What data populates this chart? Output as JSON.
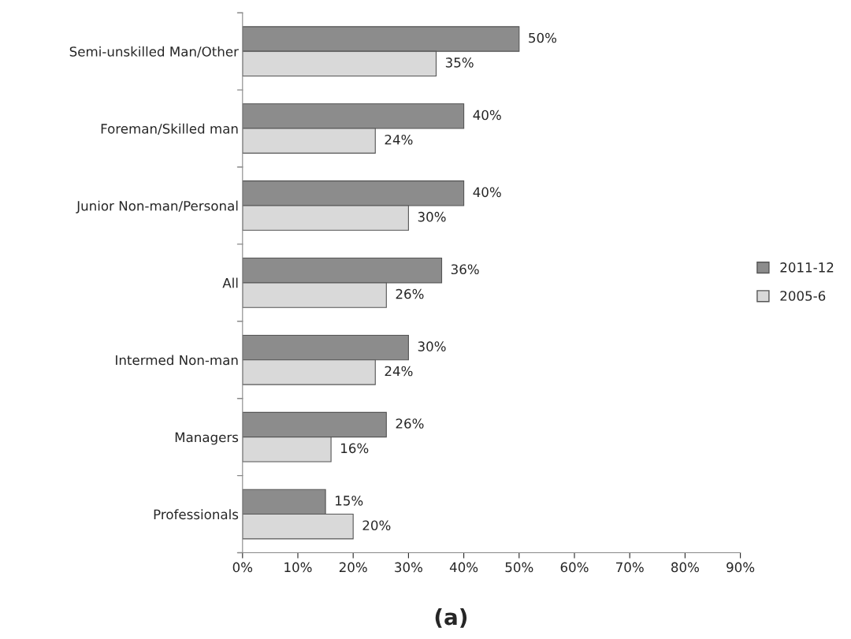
{
  "chart_data": {
    "type": "bar",
    "orientation": "horizontal",
    "categories": [
      "Semi-unskilled Man/Other",
      "Foreman/Skilled man",
      "Junior Non-man/Personal",
      "All",
      "Intermed Non-man",
      "Managers",
      "Professionals"
    ],
    "series": [
      {
        "name": "2011-12",
        "color": "#8c8c8c",
        "values": [
          50,
          40,
          40,
          36,
          30,
          26,
          15
        ],
        "value_labels": [
          "50%",
          "40%",
          "40%",
          "36%",
          "30%",
          "26%",
          "15%"
        ]
      },
      {
        "name": "2005-6",
        "color": "#d9d9d9",
        "values": [
          35,
          24,
          30,
          26,
          24,
          16,
          20
        ],
        "value_labels": [
          "35%",
          "24%",
          "30%",
          "26%",
          "24%",
          "16%",
          "20%"
        ]
      }
    ],
    "xlim": [
      0,
      90
    ],
    "xticks": [
      {
        "value": 0,
        "label": "0%"
      },
      {
        "value": 10,
        "label": "10%"
      },
      {
        "value": 20,
        "label": "20%"
      },
      {
        "value": 30,
        "label": "30%"
      },
      {
        "value": 40,
        "label": "40%"
      },
      {
        "value": 50,
        "label": "50%"
      },
      {
        "value": 60,
        "label": "60%"
      },
      {
        "value": 70,
        "label": "70%"
      },
      {
        "value": 80,
        "label": "80%"
      },
      {
        "value": 90,
        "label": "90%"
      }
    ],
    "legend": "right",
    "grid": false,
    "annotations": [
      "(a)"
    ]
  }
}
